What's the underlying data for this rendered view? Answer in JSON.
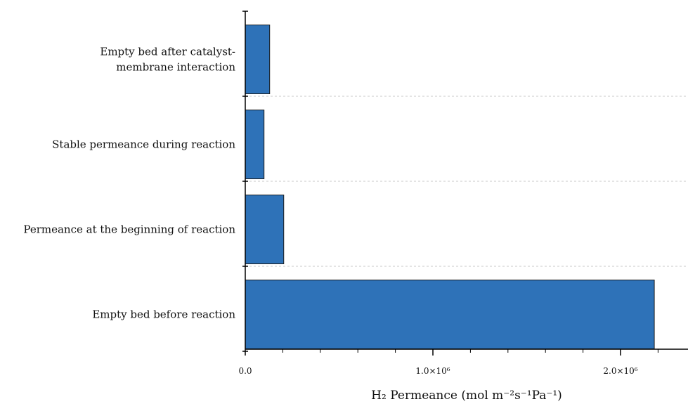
{
  "chart_data": {
    "type": "bar",
    "orientation": "horizontal",
    "categories": [
      [
        "Empty bed after catalyst-",
        "membrane interaction"
      ],
      [
        "Stable permeance during reaction"
      ],
      [
        "Permeance at the beginning of reaction"
      ],
      [
        "Empty bed before reaction"
      ]
    ],
    "values": [
      130000,
      100000,
      205000,
      2180000
    ],
    "xlim": [
      0,
      2400000
    ],
    "xticks": [
      {
        "value": 0,
        "label": "0.0"
      },
      {
        "value": 1000000,
        "label": "1.0×10⁶"
      },
      {
        "value": 2000000,
        "label": "2.0×10⁶"
      }
    ],
    "xminor_step": 200000,
    "xlabel": "H₂ Permeance (mol m⁻²s⁻¹Pa⁻¹)",
    "title": "",
    "grid": "dashed horizontal separators between categories",
    "bar_color": "#2e72b8",
    "bar_outline": "#1a1a1a",
    "grid_color": "#c8c8c8"
  }
}
